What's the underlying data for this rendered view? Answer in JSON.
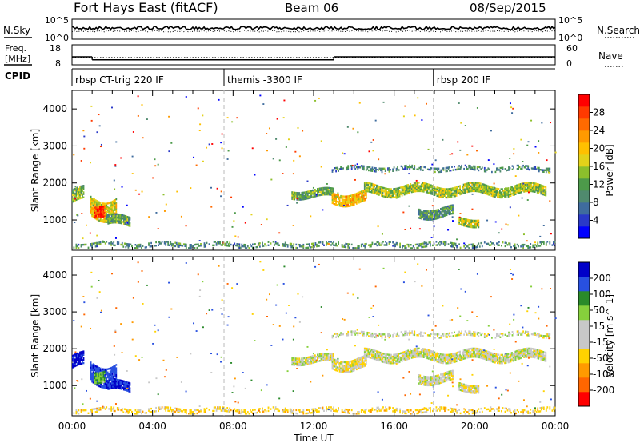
{
  "header": {
    "station": "Fort Hays East (fitACF)",
    "beam": "Beam 06",
    "date": "08/Sep/2015"
  },
  "noise_panel": {
    "left_label": "N.Sky",
    "right_label": "N.Search",
    "left_ticks": [
      "10^5",
      "10^0"
    ],
    "right_ticks": [
      "10^5",
      "10^0"
    ]
  },
  "freq_panel": {
    "left_label_1": "Freq.",
    "left_label_2": "[MHz]",
    "right_label": "Nave",
    "left_ticks": [
      "18",
      "8"
    ],
    "right_ticks": [
      "60",
      "0"
    ],
    "freq_steps": [
      {
        "t0": 0.0,
        "t1": 1.0,
        "value": 12
      },
      {
        "t0": 1.0,
        "t1": 13.0,
        "value": 10.5
      },
      {
        "t0": 13.0,
        "t1": 24.0,
        "value": 12
      }
    ],
    "nave_level": 22
  },
  "cpid": {
    "label": "CPID",
    "segments": [
      {
        "start": 0.0,
        "label": "rbsp CT-trig 220 IF"
      },
      {
        "start": 7.55,
        "label": "themis -3300 IF"
      },
      {
        "start": 17.95,
        "label": "rbsp 200 IF"
      }
    ]
  },
  "time_axis": {
    "label": "Time UT",
    "range": [
      0,
      24
    ],
    "ticks": [
      "00:00",
      "04:00",
      "08:00",
      "12:00",
      "16:00",
      "20:00",
      "00:00"
    ]
  },
  "range_axis": {
    "label": "Slant Range [km]",
    "range": [
      180,
      4500
    ],
    "ticks": [
      "1000",
      "2000",
      "3000",
      "4000"
    ]
  },
  "power_colorbar": {
    "label": "Power [dB]",
    "range": [
      0,
      32
    ],
    "ticks": [
      "4",
      "8",
      "12",
      "16",
      "20",
      "24",
      "28"
    ],
    "colors": [
      "#0000ff",
      "#2a39c8",
      "#3f6c9e",
      "#508a6e",
      "#4d9a4a",
      "#8cbf2c",
      "#e3d21a",
      "#ffc000",
      "#ff9a00",
      "#ff6a00",
      "#ff3a00",
      "#ff0000"
    ]
  },
  "velocity_colorbar": {
    "label": "Velocity [m s^-1]",
    "ticks": [
      "200",
      "100",
      "50",
      "15",
      "-15",
      "-50",
      "-100",
      "-200"
    ],
    "colors": [
      "#0000c8",
      "#2850e0",
      "#2a8a2a",
      "#86d03c",
      "#c8c8c8",
      "#c8c8c8",
      "#ffd200",
      "#ff9a00",
      "#ff6600",
      "#ff0000"
    ]
  },
  "dashed_times": [
    7.55,
    17.95
  ],
  "chart_data": {
    "type": "heatmap",
    "title": "Fort Hays East (fitACF) Beam 06 08/Sep/2015",
    "xlabel": "Time UT",
    "ylabel": "Slant Range [km]",
    "xlim": [
      0,
      24
    ],
    "ylim": [
      180,
      4500
    ],
    "panels": [
      "Power [dB]",
      "Velocity [m s^-1]"
    ],
    "echo_regions": [
      {
        "t0": 0.0,
        "t1": 0.6,
        "r_center": 1650,
        "r_width": 350,
        "power": 14,
        "velocity": 220
      },
      {
        "t0": 0.9,
        "t1": 2.2,
        "r_center": 1350,
        "r_width": 500,
        "power": 18,
        "velocity": 180
      },
      {
        "t0": 1.1,
        "t1": 1.6,
        "r_center": 1300,
        "r_width": 300,
        "power": 28,
        "velocity": 40
      },
      {
        "t0": 1.7,
        "t1": 2.9,
        "r_center": 950,
        "r_width": 250,
        "power": 12,
        "velocity": 200
      },
      {
        "t0": 10.9,
        "t1": 13.0,
        "r_center": 1700,
        "r_width": 200,
        "power": 12,
        "velocity": 0
      },
      {
        "t0": 12.9,
        "t1": 14.6,
        "r_center": 1600,
        "r_width": 300,
        "power": 20,
        "velocity": -10
      },
      {
        "t0": 14.5,
        "t1": 23.5,
        "r_center": 1800,
        "r_width": 250,
        "power": 15,
        "velocity": 0
      },
      {
        "t0": 12.9,
        "t1": 23.8,
        "r_center": 2380,
        "r_width": 120,
        "power": 9,
        "velocity": 0
      },
      {
        "t0": 17.2,
        "t1": 18.9,
        "r_center": 1200,
        "r_width": 250,
        "power": 10,
        "velocity": 0
      },
      {
        "t0": 19.2,
        "t1": 20.2,
        "r_center": 950,
        "r_width": 200,
        "power": 16,
        "velocity": -10
      },
      {
        "t0": 0.0,
        "t1": 24.0,
        "r_center": 320,
        "r_width": 120,
        "power": 10,
        "velocity": -30
      }
    ]
  }
}
